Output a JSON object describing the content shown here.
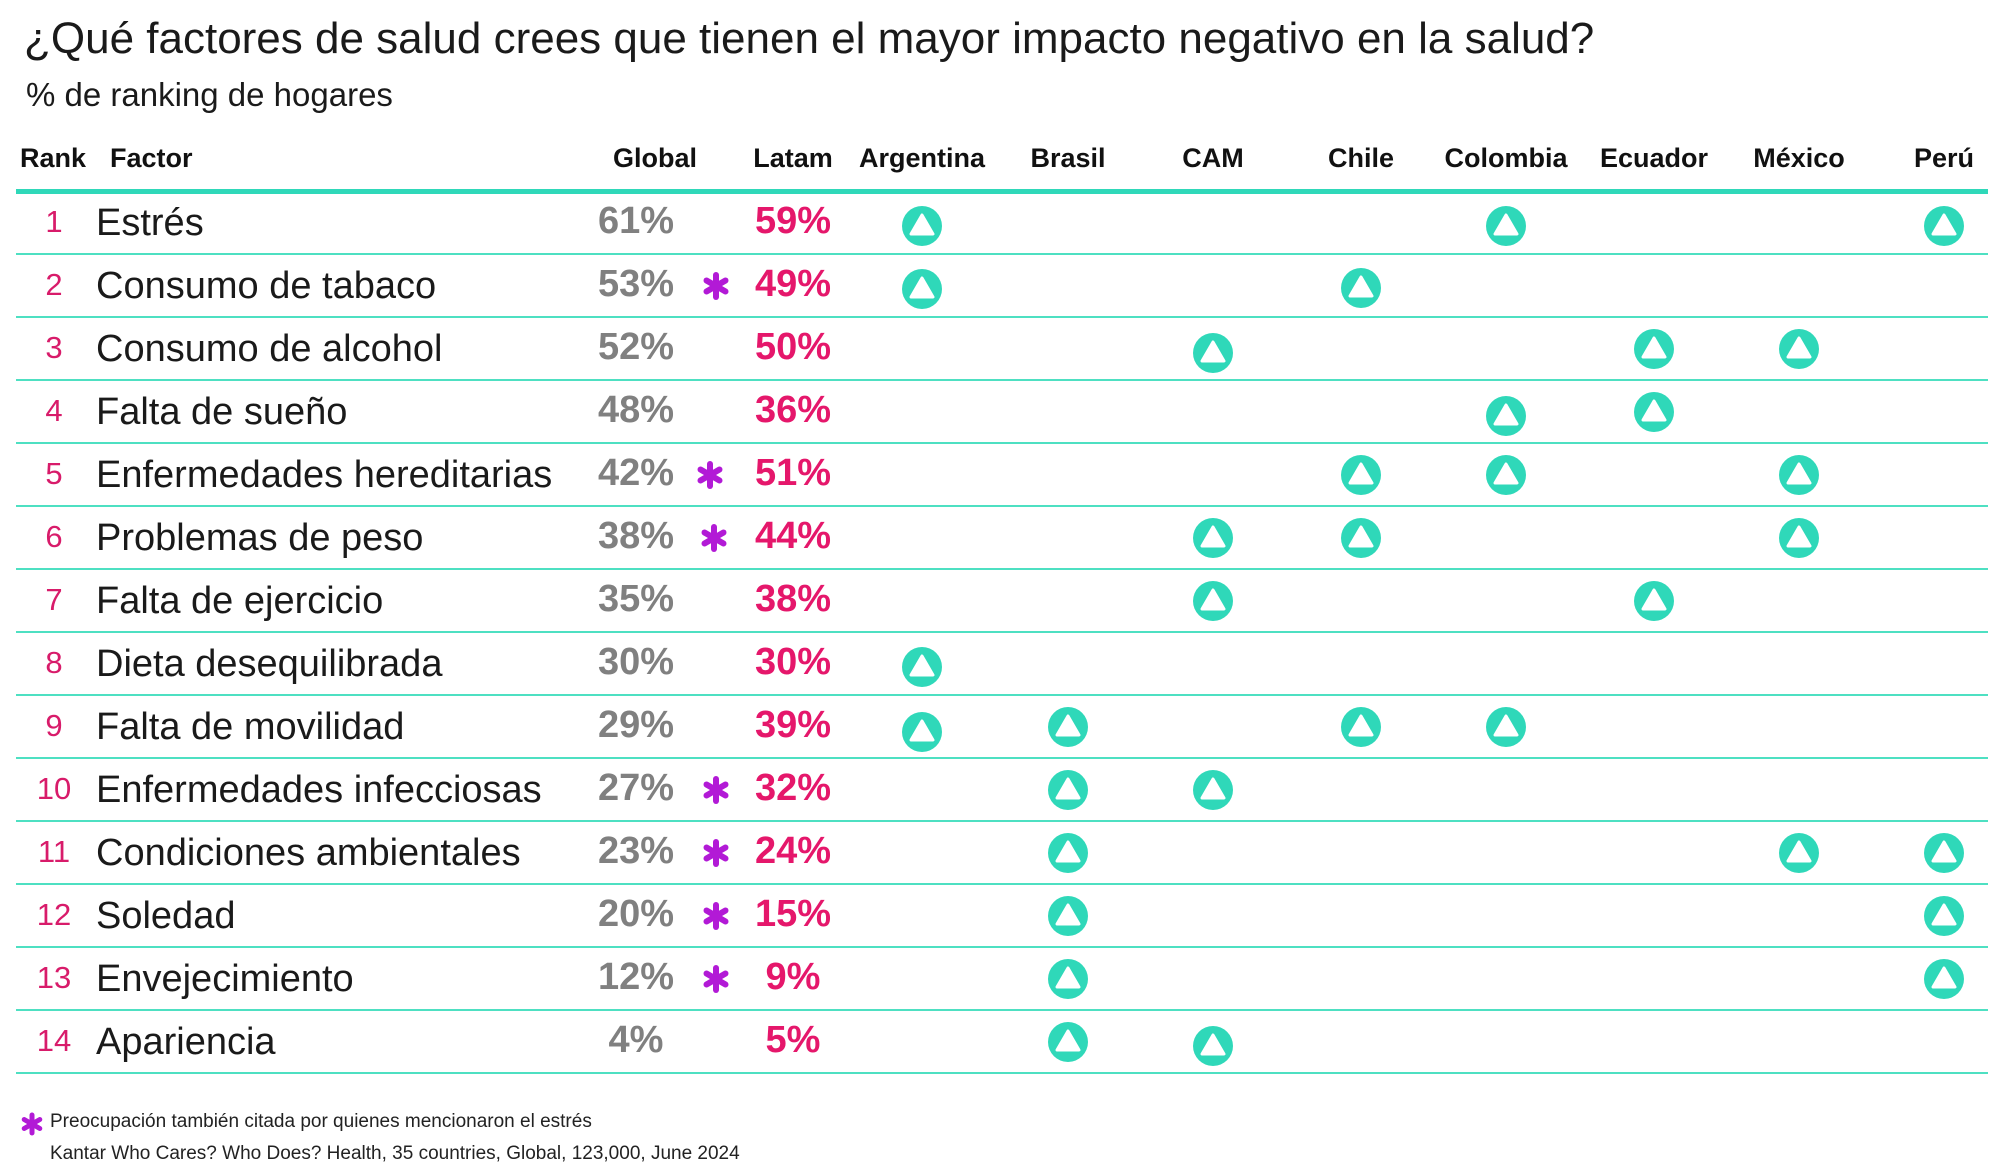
{
  "title": "¿Qué factores de salud crees que tienen el mayor impacto negativo en la salud?",
  "subtitle": "% de ranking de hogares",
  "headers": {
    "rank": "Rank",
    "factor": "Factor",
    "global": "Global",
    "latam": "Latam",
    "countries": [
      "Argentina",
      "Brasil",
      "CAM",
      "Chile",
      "Colombia",
      "Ecuador",
      "México",
      "Perú"
    ]
  },
  "colors": {
    "accent_teal": "#2fd8b9",
    "latam_pink": "#e5176b",
    "rank_pink": "#d81b6a",
    "star_purple": "#b21ad6",
    "global_gray": "#808080"
  },
  "icons": {
    "indicator": "triangle-up-circle-icon",
    "star": "asterisk-icon"
  },
  "chart_data": {
    "type": "table",
    "rows": [
      {
        "rank": "1",
        "factor": "Estrés",
        "global": "61%",
        "latam": "59%",
        "star": false,
        "countries": [
          "Argentina",
          "Colombia",
          "Perú"
        ]
      },
      {
        "rank": "2",
        "factor": "Consumo de tabaco",
        "global": "53%",
        "latam": "49%",
        "star": true,
        "countries": [
          "Argentina",
          "Chile"
        ]
      },
      {
        "rank": "3",
        "factor": "Consumo de alcohol",
        "global": "52%",
        "latam": "50%",
        "star": false,
        "countries": [
          "CAM",
          "Ecuador",
          "México"
        ]
      },
      {
        "rank": "4",
        "factor": "Falta de sueño",
        "global": "48%",
        "latam": "36%",
        "star": false,
        "countries": [
          "Colombia",
          "Ecuador"
        ]
      },
      {
        "rank": "5",
        "factor": "Enfermedades hereditarias",
        "global": "42%",
        "latam": "51%",
        "star": true,
        "countries": [
          "Chile",
          "Colombia",
          "México"
        ]
      },
      {
        "rank": "6",
        "factor": "Problemas de peso",
        "global": "38%",
        "latam": "44%",
        "star": true,
        "countries": [
          "CAM",
          "Chile",
          "México"
        ]
      },
      {
        "rank": "7",
        "factor": "Falta de ejercicio",
        "global": "35%",
        "latam": "38%",
        "star": false,
        "countries": [
          "CAM",
          "Ecuador"
        ]
      },
      {
        "rank": "8",
        "factor": "Dieta desequilibrada",
        "global": "30%",
        "latam": "30%",
        "star": false,
        "countries": [
          "Argentina"
        ]
      },
      {
        "rank": "9",
        "factor": "Falta de movilidad",
        "global": "29%",
        "latam": "39%",
        "star": false,
        "countries": [
          "Argentina",
          "Brasil",
          "Chile",
          "Colombia"
        ]
      },
      {
        "rank": "10",
        "factor": "Enfermedades infecciosas",
        "global": "27%",
        "latam": "32%",
        "star": true,
        "countries": [
          "Brasil",
          "CAM"
        ]
      },
      {
        "rank": "11",
        "factor": "Condiciones ambientales",
        "global": "23%",
        "latam": "24%",
        "star": true,
        "countries": [
          "Brasil",
          "México",
          "Perú"
        ]
      },
      {
        "rank": "12",
        "factor": "Soledad",
        "global": "20%",
        "latam": "15%",
        "star": true,
        "countries": [
          "Brasil",
          "Perú"
        ]
      },
      {
        "rank": "13",
        "factor": "Envejecimiento",
        "global": "12%",
        "latam": "9%",
        "star": true,
        "countries": [
          "Brasil",
          "Perú"
        ]
      },
      {
        "rank": "14",
        "factor": "Apariencia",
        "global": "4%",
        "latam": "5%",
        "star": false,
        "countries": [
          "Brasil",
          "CAM"
        ]
      }
    ]
  },
  "footnote": "Preocupación también citada por quienes mencionaron el estrés",
  "source": "Kantar Who Cares? Who Does? Health, 35 countries, Global, 123,000, June 2024"
}
